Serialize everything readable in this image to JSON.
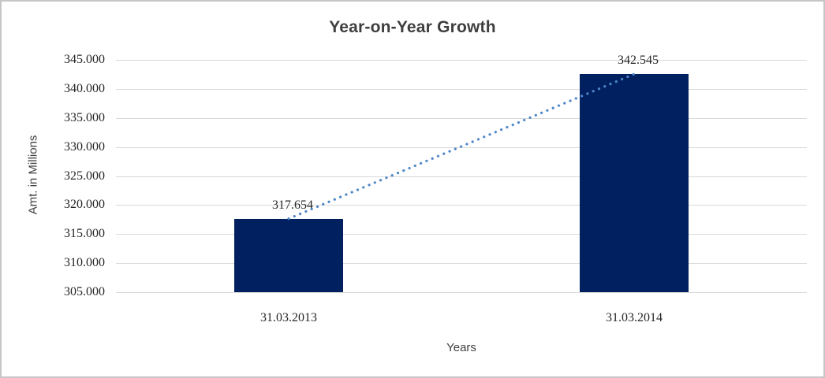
{
  "chart_data": {
    "type": "bar",
    "title": "Year-on-Year Growth",
    "xlabel": "Years",
    "ylabel": "Amt. in Millions",
    "categories": [
      "31.03.2013",
      "31.03.2014"
    ],
    "values": [
      317.654,
      342.545
    ],
    "data_labels": [
      "317.654",
      "342.545"
    ],
    "ylim": [
      305,
      345
    ],
    "ytick_step": 5,
    "ytick_labels_top_to_bottom": [
      "345.000",
      "340.000",
      "335.000",
      "330.000",
      "325.000",
      "320.000",
      "315.000",
      "310.000",
      "305.000"
    ],
    "grid": true,
    "legend": "none",
    "trendline": {
      "type": "linear",
      "style": "dotted",
      "connects": [
        "31.03.2013",
        "31.03.2014"
      ]
    },
    "colors": {
      "bar_fill": "#002060",
      "trendline": "#4e87c8",
      "gridline": "#d9d9d9",
      "title_text": "#3f3f3f",
      "tick_text": "#262626",
      "frame_border": "#c6c6c6"
    }
  }
}
